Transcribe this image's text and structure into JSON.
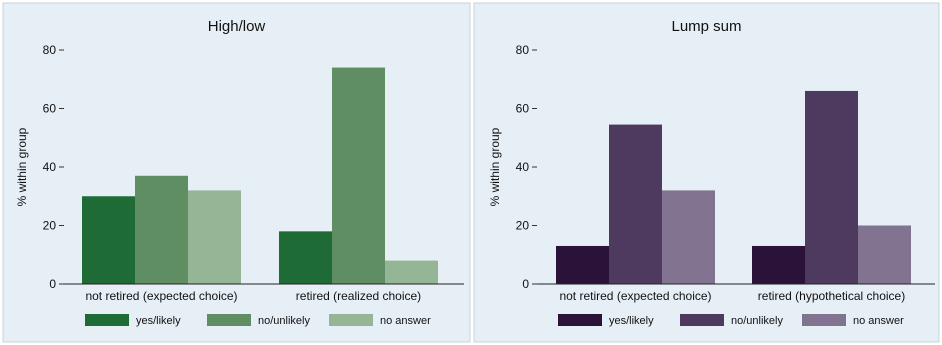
{
  "chart_data": [
    {
      "type": "bar",
      "title": "High/low",
      "ylabel": "% within group",
      "xlabel": "",
      "ylim": [
        0,
        80
      ],
      "yticks": [
        0,
        20,
        40,
        60,
        80
      ],
      "categories": [
        "not retired (expected choice)",
        "retired (realized choice)"
      ],
      "series": [
        {
          "name": "yes/likely",
          "values": [
            30,
            18
          ],
          "color": "#1e6b36"
        },
        {
          "name": "no/unlikely",
          "values": [
            37,
            74
          ],
          "color": "#5e8e62"
        },
        {
          "name": "no answer",
          "values": [
            32,
            8
          ],
          "color": "#94b596"
        }
      ],
      "grid": false,
      "legend_position": "bottom",
      "background": "#e6eff5"
    },
    {
      "type": "bar",
      "title": "Lump sum",
      "ylabel": "% within group",
      "xlabel": "",
      "ylim": [
        0,
        80
      ],
      "yticks": [
        0,
        20,
        40,
        60,
        80
      ],
      "categories": [
        "not retired (expected choice)",
        "retired (hypothetical choice)"
      ],
      "series": [
        {
          "name": "yes/likely",
          "values": [
            13,
            13
          ],
          "color": "#2a1238"
        },
        {
          "name": "no/unlikely",
          "values": [
            54.5,
            66
          ],
          "color": "#4e3a5e"
        },
        {
          "name": "no answer",
          "values": [
            32,
            20
          ],
          "color": "#827490"
        }
      ],
      "grid": false,
      "legend_position": "bottom",
      "background": "#e6eff5"
    }
  ]
}
